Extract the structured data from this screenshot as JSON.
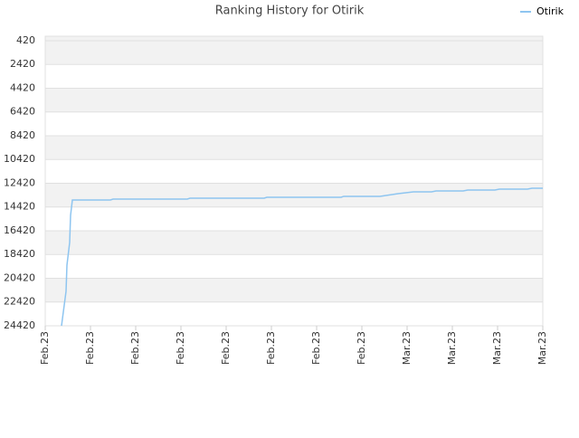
{
  "chart_data": {
    "type": "line",
    "title": "Ranking History for Otirik",
    "x": [
      0.36,
      0.46,
      0.48,
      0.54,
      0.56,
      0.6,
      1.44,
      1.5,
      3.14,
      3.2,
      4.84,
      4.9,
      6.54,
      6.6,
      7.4,
      7.8,
      8.14,
      8.54,
      8.64,
      9.24,
      9.34,
      9.94,
      10.04,
      10.66,
      10.76,
      11
    ],
    "series": [
      {
        "name": "Otirik",
        "color": "#8ec5f0",
        "values": [
          24420,
          21524,
          19315,
          17410,
          15124,
          13828,
          13828,
          13752,
          13752,
          13676,
          13676,
          13600,
          13600,
          13523,
          13523,
          13295,
          13142,
          13142,
          13066,
          13066,
          12990,
          12990,
          12914,
          12914,
          12838,
          12838
        ]
      }
    ],
    "xlim": [
      0,
      11
    ],
    "xticks": [
      {
        "value": 0,
        "label": "Feb.23"
      },
      {
        "value": 1,
        "label": "Feb.23"
      },
      {
        "value": 2,
        "label": "Feb.23"
      },
      {
        "value": 3,
        "label": "Feb.23"
      },
      {
        "value": 4,
        "label": "Feb.23"
      },
      {
        "value": 5,
        "label": "Feb.23"
      },
      {
        "value": 6,
        "label": "Feb.23"
      },
      {
        "value": 7,
        "label": "Feb.23"
      },
      {
        "value": 8,
        "label": "Mar.23"
      },
      {
        "value": 9,
        "label": "Mar.23"
      },
      {
        "value": 10,
        "label": "Mar.23"
      },
      {
        "value": 11,
        "label": "Mar.23"
      }
    ],
    "ylim": [
      24420,
      40
    ],
    "yticks": [
      420,
      2420,
      4420,
      6420,
      8420,
      10420,
      12420,
      14420,
      16420,
      18420,
      20420,
      22420,
      24420
    ],
    "grid": true,
    "legend": "top-right"
  }
}
